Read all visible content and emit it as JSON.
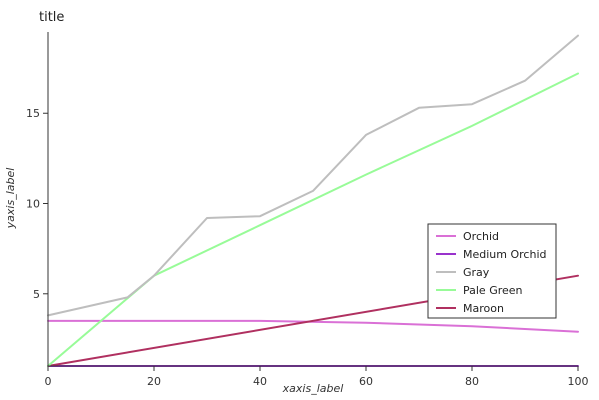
{
  "chart_data": {
    "type": "line",
    "title": "title",
    "xlabel": "xaxis_label",
    "ylabel": "yaxis_label",
    "xlim": [
      0,
      100
    ],
    "ylim": [
      1,
      19.5
    ],
    "x_ticks": [
      "0",
      "20",
      "40",
      "60",
      "80",
      "100"
    ],
    "y_ticks": [
      "5",
      "10",
      "15"
    ],
    "y_tick_values": [
      5,
      10,
      15
    ],
    "x_tick_values": [
      0,
      20,
      40,
      60,
      80,
      100
    ],
    "grid": false,
    "legend_position": "right",
    "series": [
      {
        "name": "Orchid",
        "color": "#da70d6",
        "x": [
          0,
          20,
          40,
          60,
          80,
          100
        ],
        "y": [
          3.5,
          3.5,
          3.5,
          3.4,
          3.2,
          2.9
        ]
      },
      {
        "name": "Medium Orchid",
        "color": "#9932cc",
        "x": [
          0,
          20,
          40,
          60,
          80,
          100
        ],
        "y": [
          1.0,
          1.0,
          1.0,
          1.0,
          1.0,
          1.0
        ]
      },
      {
        "name": "Gray",
        "color": "#bebebe",
        "x": [
          0,
          15,
          20,
          30,
          40,
          50,
          60,
          70,
          80,
          90,
          100
        ],
        "y": [
          3.8,
          4.8,
          6.0,
          9.2,
          9.3,
          10.7,
          13.8,
          15.3,
          15.5,
          16.8,
          19.3
        ]
      },
      {
        "name": "Pale Green",
        "color": "#98fb98",
        "x": [
          0,
          20,
          40,
          60,
          80,
          100
        ],
        "y": [
          1.0,
          6.0,
          8.8,
          11.6,
          14.3,
          17.2
        ]
      },
      {
        "name": "Maroon",
        "color": "#b03060",
        "x": [
          0,
          100
        ],
        "y": [
          1.0,
          6.0
        ]
      }
    ]
  }
}
